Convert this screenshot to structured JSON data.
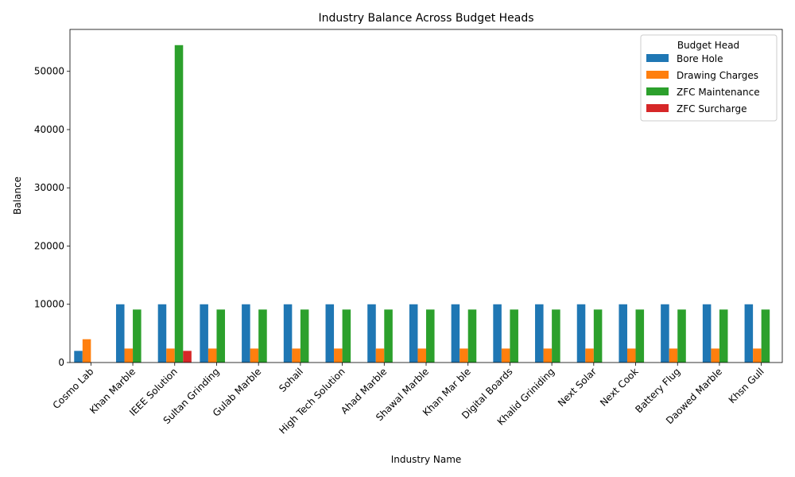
{
  "chart_data": {
    "type": "bar",
    "title": "Industry Balance Across Budget Heads",
    "xlabel": "Industry Name",
    "ylabel": "Balance",
    "ylim": [
      0,
      57200
    ],
    "yticks": [
      0,
      10000,
      20000,
      30000,
      40000,
      50000
    ],
    "grid": false,
    "legend": {
      "title": "Budget Head",
      "placement": "top-right"
    },
    "categories": [
      "Cosmo Lab",
      "Khan Marble",
      "IEEE Solution",
      "Sultan Grinding",
      "Gulab Marble",
      "Sohail",
      "High Tech Solution",
      "Ahad Marble",
      "Shawal Marble",
      "Khan Mar ble",
      "Digital Boards",
      "Khalid Griniding",
      "Next Solar",
      "Next Cook",
      "Battery Flug",
      "Daowed Marble",
      "Khsn Gull"
    ],
    "series": [
      {
        "name": "Bore Hole",
        "color": "#1f77b4",
        "values": [
          2000,
          10000,
          10000,
          10000,
          10000,
          10000,
          10000,
          10000,
          10000,
          10000,
          10000,
          10000,
          10000,
          10000,
          10000,
          10000,
          10000
        ]
      },
      {
        "name": "Drawing Charges",
        "color": "#ff7f0e",
        "values": [
          4000,
          2400,
          2400,
          2400,
          2400,
          2400,
          2400,
          2400,
          2400,
          2400,
          2400,
          2400,
          2400,
          2400,
          2400,
          2400,
          2400
        ]
      },
      {
        "name": "ZFC Maintenance",
        "color": "#2ca02c",
        "values": [
          null,
          9100,
          54500,
          9100,
          9100,
          9100,
          9100,
          9100,
          9100,
          9100,
          9100,
          9100,
          9100,
          9100,
          9100,
          9100,
          9100
        ]
      },
      {
        "name": "ZFC Surcharge",
        "color": "#d62728",
        "values": [
          null,
          null,
          2000,
          null,
          null,
          null,
          null,
          null,
          null,
          null,
          null,
          null,
          null,
          null,
          null,
          null,
          null
        ]
      }
    ]
  }
}
